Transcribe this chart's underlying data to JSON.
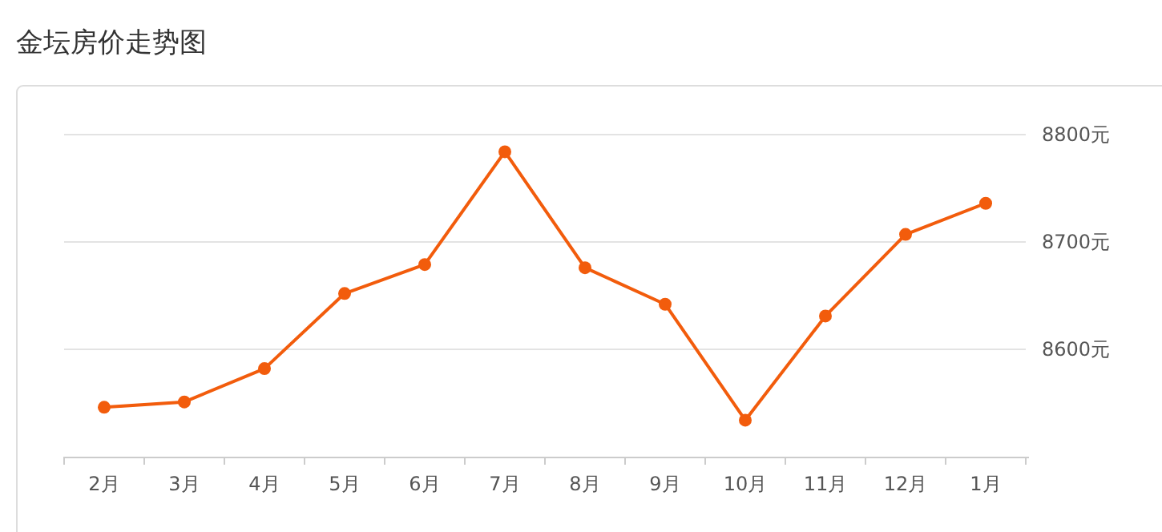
{
  "chart_data": {
    "type": "line",
    "title": "金坛房价走势图",
    "categories": [
      "2月",
      "3月",
      "4月",
      "5月",
      "6月",
      "7月",
      "8月",
      "9月",
      "10月",
      "11月",
      "12月",
      "1月"
    ],
    "series": [
      {
        "color": "#f25c0c",
        "values": [
          8546,
          8551,
          8582,
          8652,
          8679,
          8784,
          8676,
          8642,
          8534,
          8631,
          8707,
          8736
        ]
      }
    ],
    "ylim": [
      8500,
      8800
    ],
    "yticks": [
      {
        "value": 8600,
        "label": "8600元"
      },
      {
        "value": 8700,
        "label": "8700元"
      },
      {
        "value": 8800,
        "label": "8800元"
      }
    ],
    "grid": "y",
    "marker": "circle",
    "line_style": "solid"
  }
}
